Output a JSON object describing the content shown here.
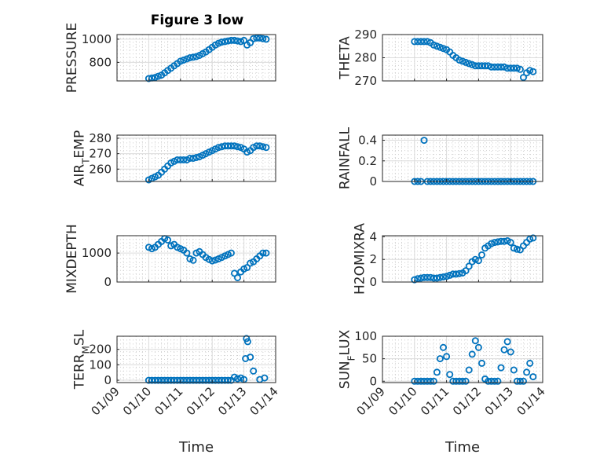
{
  "figure": {
    "title": "Figure 3 low",
    "marker_color": "#0072BD"
  },
  "chart_data": [
    {
      "type": "scatter",
      "ylabel": "PRESSURE",
      "ylim": [
        640,
        1040
      ],
      "yticks": [
        800,
        1000
      ],
      "xlim": [
        0,
        5
      ],
      "x": [
        1.0,
        1.1,
        1.2,
        1.3,
        1.4,
        1.5,
        1.6,
        1.7,
        1.8,
        1.9,
        2.0,
        2.1,
        2.2,
        2.3,
        2.4,
        2.5,
        2.6,
        2.7,
        2.8,
        2.9,
        3.0,
        3.1,
        3.2,
        3.3,
        3.4,
        3.5,
        3.6,
        3.7,
        3.8,
        3.9,
        4.0,
        4.1,
        4.2,
        4.3,
        4.4,
        4.5,
        4.6,
        4.7
      ],
      "y": [
        660,
        665,
        670,
        680,
        690,
        710,
        730,
        750,
        770,
        790,
        810,
        820,
        830,
        840,
        845,
        850,
        860,
        875,
        890,
        910,
        930,
        950,
        965,
        975,
        980,
        985,
        990,
        990,
        985,
        980,
        990,
        950,
        970,
        1005,
        1010,
        1010,
        1005,
        1000
      ]
    },
    {
      "type": "scatter",
      "ylabel": "THETA",
      "ylim": [
        270,
        290
      ],
      "yticks": [
        270,
        280,
        290
      ],
      "xlim": [
        0,
        5
      ],
      "x": [
        1.0,
        1.1,
        1.2,
        1.3,
        1.4,
        1.5,
        1.6,
        1.7,
        1.8,
        1.9,
        2.0,
        2.1,
        2.2,
        2.3,
        2.4,
        2.5,
        2.6,
        2.7,
        2.8,
        2.9,
        3.0,
        3.1,
        3.2,
        3.3,
        3.4,
        3.5,
        3.6,
        3.7,
        3.8,
        3.9,
        4.0,
        4.1,
        4.2,
        4.3,
        4.4,
        4.5,
        4.6,
        4.7
      ],
      "y": [
        287,
        287,
        287,
        287,
        287,
        286.5,
        285.5,
        285,
        284.5,
        284,
        283.5,
        282.5,
        281,
        280,
        279,
        278.5,
        278,
        277.5,
        277,
        276.5,
        276.5,
        276.5,
        276.5,
        276.5,
        276,
        276,
        276,
        276,
        276,
        275.5,
        275.5,
        275.5,
        275.5,
        275,
        271.5,
        273.5,
        274.5,
        274
      ]
    },
    {
      "type": "scatter",
      "ylabel": "AIR_TEMP",
      "ylim": [
        252,
        282
      ],
      "yticks": [
        260,
        270,
        280
      ],
      "xlim": [
        0,
        5
      ],
      "x": [
        1.0,
        1.1,
        1.2,
        1.3,
        1.4,
        1.5,
        1.6,
        1.7,
        1.8,
        1.9,
        2.0,
        2.1,
        2.2,
        2.3,
        2.4,
        2.5,
        2.6,
        2.7,
        2.8,
        2.9,
        3.0,
        3.1,
        3.2,
        3.3,
        3.4,
        3.5,
        3.6,
        3.7,
        3.8,
        3.9,
        4.0,
        4.1,
        4.2,
        4.3,
        4.4,
        4.5,
        4.6,
        4.7
      ],
      "y": [
        253,
        254,
        255,
        256,
        258,
        260,
        262,
        264,
        265,
        266,
        266,
        266,
        266,
        267,
        267,
        267.5,
        268,
        269,
        270,
        271,
        272,
        273,
        274,
        274.5,
        275,
        275,
        275,
        275,
        274.5,
        274,
        273,
        271,
        272,
        274,
        275,
        275,
        274.5,
        274
      ]
    },
    {
      "type": "scatter",
      "ylabel": "RAINFALL",
      "ylim": [
        0,
        0.45
      ],
      "yticks": [
        0,
        0.2,
        0.4
      ],
      "xlim": [
        0,
        5
      ],
      "x": [
        1.0,
        1.1,
        1.2,
        1.3,
        1.4,
        1.5,
        1.6,
        1.7,
        1.8,
        1.9,
        2.0,
        2.1,
        2.2,
        2.3,
        2.4,
        2.5,
        2.6,
        2.7,
        2.8,
        2.9,
        3.0,
        3.1,
        3.2,
        3.3,
        3.4,
        3.5,
        3.6,
        3.7,
        3.8,
        3.9,
        4.0,
        4.1,
        4.2,
        4.3,
        4.4,
        4.5,
        4.6,
        4.7
      ],
      "y": [
        0,
        0,
        0,
        0.4,
        0,
        0,
        0,
        0,
        0,
        0,
        0,
        0,
        0,
        0,
        0,
        0,
        0,
        0,
        0,
        0,
        0,
        0,
        0,
        0,
        0,
        0,
        0,
        0,
        0,
        0,
        0,
        0,
        0,
        0,
        0,
        0,
        0,
        0
      ]
    },
    {
      "type": "scatter",
      "ylabel": "MIXDEPTH",
      "ylim": [
        0,
        1600
      ],
      "yticks": [
        0,
        1000
      ],
      "xlim": [
        0,
        5
      ],
      "x": [
        1.0,
        1.1,
        1.2,
        1.3,
        1.4,
        1.5,
        1.6,
        1.7,
        1.8,
        1.9,
        2.0,
        2.1,
        2.2,
        2.3,
        2.4,
        2.5,
        2.6,
        2.7,
        2.8,
        2.9,
        3.0,
        3.1,
        3.2,
        3.3,
        3.4,
        3.5,
        3.6,
        3.7,
        3.8,
        3.9,
        4.0,
        4.1,
        4.2,
        4.3,
        4.4,
        4.5,
        4.6,
        4.7
      ],
      "y": [
        1200,
        1150,
        1200,
        1300,
        1400,
        1500,
        1450,
        1250,
        1300,
        1200,
        1150,
        1100,
        1000,
        800,
        750,
        1000,
        1050,
        950,
        850,
        780,
        730,
        760,
        800,
        850,
        900,
        950,
        1000,
        300,
        150,
        350,
        450,
        500,
        650,
        700,
        800,
        900,
        1000,
        1000
      ]
    },
    {
      "type": "scatter",
      "ylabel": "H2OMIXRA",
      "ylim": [
        0,
        4.1
      ],
      "yticks": [
        0,
        2,
        4
      ],
      "xlim": [
        0,
        5
      ],
      "x": [
        1.0,
        1.1,
        1.2,
        1.3,
        1.4,
        1.5,
        1.6,
        1.7,
        1.8,
        1.9,
        2.0,
        2.1,
        2.2,
        2.3,
        2.4,
        2.5,
        2.6,
        2.7,
        2.8,
        2.9,
        3.0,
        3.1,
        3.2,
        3.3,
        3.4,
        3.5,
        3.6,
        3.7,
        3.8,
        3.9,
        4.0,
        4.1,
        4.2,
        4.3,
        4.4,
        4.5,
        4.6,
        4.7
      ],
      "y": [
        0.2,
        0.3,
        0.35,
        0.4,
        0.4,
        0.4,
        0.35,
        0.35,
        0.4,
        0.45,
        0.5,
        0.6,
        0.7,
        0.7,
        0.75,
        0.8,
        1.0,
        1.4,
        1.8,
        2.0,
        1.9,
        2.4,
        3.0,
        3.2,
        3.4,
        3.5,
        3.55,
        3.6,
        3.6,
        3.65,
        3.5,
        3.0,
        2.9,
        2.85,
        3.2,
        3.5,
        3.8,
        3.9
      ]
    },
    {
      "type": "scatter",
      "ylabel": "TERR_MSL",
      "ylim": [
        -15,
        285
      ],
      "yticks": [
        0,
        100,
        200
      ],
      "xlim": [
        0,
        5
      ],
      "x": [
        1.0,
        1.1,
        1.2,
        1.3,
        1.4,
        1.5,
        1.6,
        1.7,
        1.8,
        1.9,
        2.0,
        2.1,
        2.2,
        2.3,
        2.4,
        2.5,
        2.6,
        2.7,
        2.8,
        2.9,
        3.0,
        3.1,
        3.2,
        3.3,
        3.4,
        3.5,
        3.6,
        3.7,
        3.8,
        3.9,
        4.0,
        4.05,
        4.08,
        4.12,
        4.2,
        4.3,
        4.5,
        4.65
      ],
      "y": [
        0,
        0,
        0,
        0,
        0,
        0,
        0,
        0,
        0,
        0,
        0,
        0,
        0,
        0,
        0,
        0,
        0,
        0,
        0,
        0,
        0,
        0,
        0,
        0,
        0,
        0,
        0,
        20,
        10,
        15,
        5,
        140,
        270,
        250,
        150,
        60,
        5,
        15
      ]
    },
    {
      "type": "scatter",
      "ylabel": "SUN_FLUX",
      "ylim": [
        -3,
        100
      ],
      "yticks": [
        0,
        50,
        100
      ],
      "xlim": [
        0,
        5
      ],
      "x": [
        1.0,
        1.1,
        1.2,
        1.3,
        1.4,
        1.5,
        1.6,
        1.7,
        1.8,
        1.9,
        2.0,
        2.1,
        2.2,
        2.3,
        2.4,
        2.5,
        2.6,
        2.7,
        2.8,
        2.9,
        3.0,
        3.1,
        3.2,
        3.3,
        3.4,
        3.5,
        3.6,
        3.7,
        3.8,
        3.9,
        4.0,
        4.1,
        4.2,
        4.3,
        4.4,
        4.5,
        4.6,
        4.7
      ],
      "y": [
        0,
        0,
        0,
        0,
        0,
        0,
        0,
        20,
        50,
        75,
        55,
        15,
        0,
        0,
        0,
        0,
        0,
        25,
        60,
        90,
        75,
        40,
        5,
        0,
        0,
        0,
        0,
        30,
        70,
        88,
        65,
        25,
        0,
        0,
        0,
        20,
        40,
        10
      ]
    }
  ],
  "xaxis": {
    "ticks": [
      {
        "value": 0,
        "label": "01/09"
      },
      {
        "value": 1,
        "label": "01/10"
      },
      {
        "value": 2,
        "label": "01/11"
      },
      {
        "value": 3,
        "label": "01/12"
      },
      {
        "value": 4,
        "label": "01/13"
      },
      {
        "value": 5,
        "label": "01/14"
      }
    ],
    "xlabel": "Time",
    "grid": true
  }
}
